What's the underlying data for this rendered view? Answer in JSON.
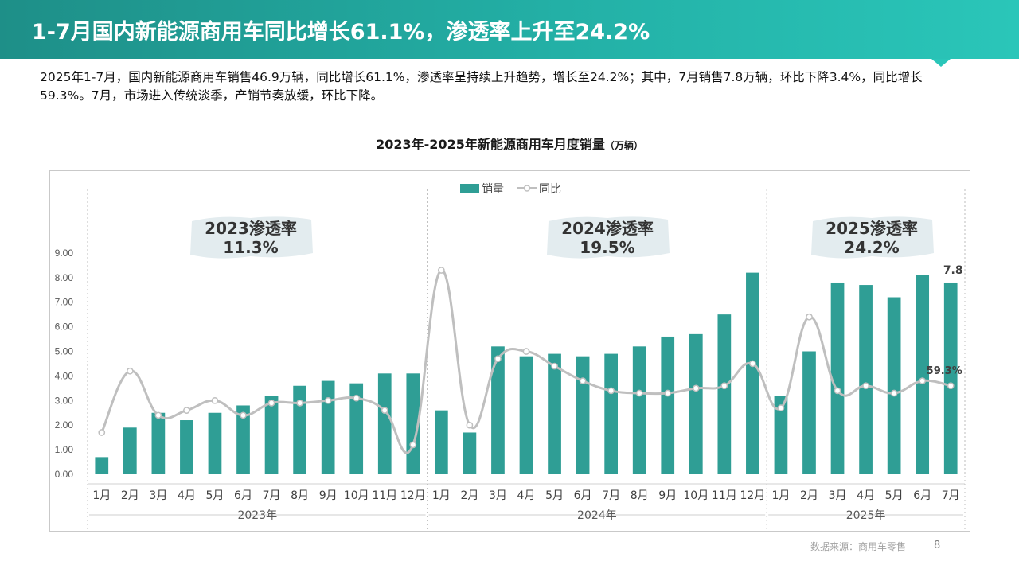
{
  "slide": {
    "title": "1-7月国内新能源商用车同比增长61.1%，渗透率上升至24.2%",
    "summary": "2025年1-7月，国内新能源商用车销售46.9万辆，同比增长61.1%，渗透率呈持续上升趋势，增长至24.2%；其中，7月销售7.8万辆，环比下降3.4%，同比增长59.3%。7月，市场进入传统淡季，产销节奏放缓，环比下降。",
    "source": "数据来源：商用车零售",
    "page_number": "8"
  },
  "colors": {
    "bar": "#2f9e95",
    "line": "#bfbfbf",
    "header": "#23b0a6"
  },
  "chart_data": {
    "type": "bar",
    "title": "2023年-2025年新能源商用车月度销量",
    "unit": "（万辆）",
    "ylim": [
      0,
      9
    ],
    "yticks": [
      "0.00",
      "1.00",
      "2.00",
      "3.00",
      "4.00",
      "5.00",
      "6.00",
      "7.00",
      "8.00",
      "9.00"
    ],
    "grid": false,
    "legend_position": "top-center",
    "categories": [
      "1月",
      "2月",
      "3月",
      "4月",
      "5月",
      "6月",
      "7月",
      "8月",
      "9月",
      "10月",
      "11月",
      "12月",
      "1月",
      "2月",
      "3月",
      "4月",
      "5月",
      "6月",
      "7月",
      "8月",
      "9月",
      "10月",
      "11月",
      "12月",
      "1月",
      "2月",
      "3月",
      "4月",
      "5月",
      "6月",
      "7月"
    ],
    "groups": [
      {
        "label": "2023年",
        "count": 12,
        "penetration_label": "2023渗透率",
        "penetration": "11.3%"
      },
      {
        "label": "2024年",
        "count": 12,
        "penetration_label": "2024渗透率",
        "penetration": "19.5%"
      },
      {
        "label": "2025年",
        "count": 7,
        "penetration_label": "2025渗透率",
        "penetration": "24.2%"
      }
    ],
    "series": [
      {
        "name": "销量",
        "type": "bar",
        "values": [
          0.7,
          1.9,
          2.5,
          2.2,
          2.5,
          2.8,
          3.2,
          3.6,
          3.8,
          3.7,
          4.1,
          4.1,
          2.6,
          1.7,
          5.2,
          4.8,
          4.9,
          4.8,
          4.9,
          5.2,
          5.6,
          5.7,
          6.5,
          8.2,
          3.2,
          5.0,
          7.8,
          7.7,
          7.2,
          8.1,
          7.8
        ]
      },
      {
        "name": "同比",
        "type": "line",
        "relative_level": [
          1.7,
          4.2,
          2.4,
          2.6,
          3.0,
          2.4,
          2.9,
          2.9,
          3.0,
          3.1,
          2.6,
          1.2,
          8.3,
          2.0,
          4.7,
          5.0,
          4.4,
          3.8,
          3.4,
          3.3,
          3.3,
          3.5,
          3.6,
          4.5,
          2.7,
          6.4,
          3.4,
          3.6,
          3.3,
          3.8,
          3.6
        ]
      }
    ],
    "annotations": {
      "last_bar_label": "7.8",
      "last_line_label": "59.3%"
    }
  }
}
